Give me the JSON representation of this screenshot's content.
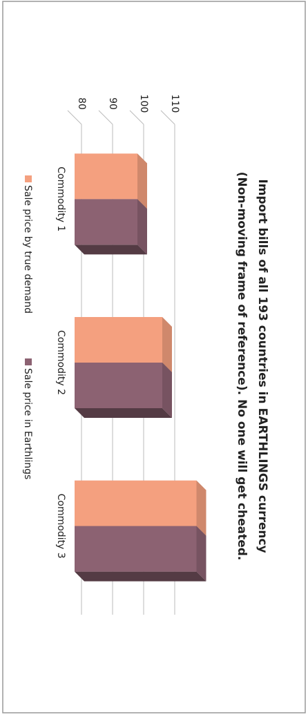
{
  "chart_data": {
    "type": "bar3d",
    "title": [
      "Import bills of all 193 countries in EARTHLINGS currency",
      "(Non-moving frame of reference). No one will get cheated."
    ],
    "categories": [
      "Commodity 1",
      "Commodity 2",
      "Commodity 3"
    ],
    "series": [
      {
        "name": "Sale price by true demand",
        "color": "#f4a07f",
        "values": [
          98,
          106,
          117
        ]
      },
      {
        "name": "Sale price in Earthlings",
        "color": "#8c6272",
        "values": [
          98,
          106,
          117
        ]
      }
    ],
    "ylim": [
      80,
      120
    ],
    "yticks": [
      80,
      90,
      100,
      110
    ],
    "grid": true,
    "legend": "bottom"
  }
}
